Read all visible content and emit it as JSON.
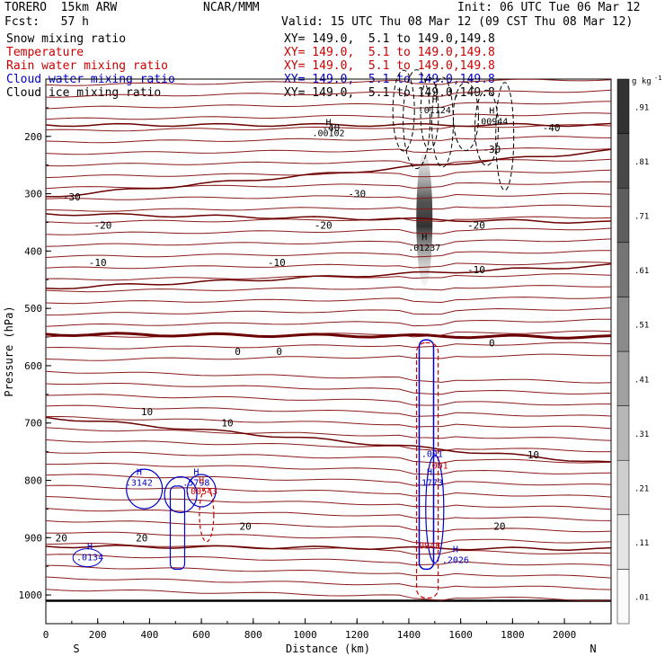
{
  "header": {
    "model": "TORERO  15km ARW",
    "center": "NCAR/MMM",
    "init": "Init: 06 UTC Tue 06 Mar 12",
    "fcst": "Fcst:   57 h",
    "valid": "Valid: 15 UTC Thu 08 Mar 12 (09 CST Thu 08 Mar 12)"
  },
  "fields": [
    {
      "name": "Snow mixing ratio",
      "xy": "XY= 149.0,  5.1 to 149.0,149.8",
      "color": "#000000"
    },
    {
      "name": "Temperature",
      "xy": "XY= 149.0,  5.1 to 149.0,149.8",
      "color": "#cc0000"
    },
    {
      "name": "Rain water mixing ratio",
      "xy": "XY= 149.0,  5.1 to 149.0,149.8",
      "color": "#cc0000"
    },
    {
      "name": "Cloud water mixing ratio",
      "xy": "XY= 149.0,  5.1 to 149.0,149.8",
      "color": "#0000cc"
    },
    {
      "name": "Cloud ice mixing ratio",
      "xy": "XY= 149.0,  5.1 to 149.0,149.8",
      "color": "#000000"
    }
  ],
  "chart_data": {
    "type": "cross-section",
    "xlabel": "Distance (km)",
    "ylabel": "Pressure (hPa)",
    "xlim": [
      0,
      2180
    ],
    "ylim": [
      100,
      1050
    ],
    "x_ticks": [
      0,
      200,
      400,
      600,
      800,
      1000,
      1200,
      1400,
      1600,
      1800,
      2000
    ],
    "y_ticks": [
      200,
      300,
      400,
      500,
      600,
      700,
      800,
      900,
      1000
    ],
    "x_end_labels": {
      "left": "S",
      "right": "N"
    },
    "colorbar": {
      "unit": "g kg",
      "unit_exp": "-1",
      "levels": [
        ".01",
        ".11",
        ".21",
        ".31",
        ".41",
        ".51",
        ".61",
        ".71",
        ".81",
        ".91"
      ]
    },
    "temperature_isotherms": [
      {
        "label": "-40",
        "p_left": 180,
        "p_right": 180,
        "labels_at": [
          [
            1100,
            185
          ],
          [
            1950,
            185
          ]
        ]
      },
      {
        "label": "-30",
        "p_left": 305,
        "p_right": 225,
        "labels_at": [
          [
            100,
            305
          ],
          [
            1200,
            300
          ],
          [
            1720,
            222
          ]
        ]
      },
      {
        "label": "-20",
        "p_left": 335,
        "p_right": 350,
        "labels_at": [
          [
            220,
            355
          ],
          [
            1070,
            355
          ],
          [
            1660,
            355
          ]
        ]
      },
      {
        "label": "-10",
        "p_left": 465,
        "p_right": 425,
        "labels_at": [
          [
            200,
            420
          ],
          [
            890,
            420
          ],
          [
            1660,
            432
          ]
        ]
      },
      {
        "label": "0",
        "p_left": 545,
        "p_right": 550,
        "labels_at": [
          [
            740,
            575
          ],
          [
            900,
            575
          ],
          [
            1720,
            560
          ]
        ]
      },
      {
        "label": "10",
        "p_left": 690,
        "p_right": 770,
        "labels_at": [
          [
            390,
            680
          ],
          [
            700,
            700
          ],
          [
            1880,
            755
          ]
        ]
      },
      {
        "label": "20",
        "p_left": 915,
        "p_right": 920,
        "labels_at": [
          [
            60,
            900
          ],
          [
            370,
            900
          ],
          [
            770,
            880
          ],
          [
            1750,
            880
          ]
        ]
      }
    ],
    "extrema_labels": [
      {
        "mark": "H",
        "value": ".01124",
        "x": 1500,
        "p": 150,
        "field": "Cloud ice mixing ratio"
      },
      {
        "mark": "H",
        "value": ".00944",
        "x": 1720,
        "p": 170,
        "field": "Cloud ice mixing ratio"
      },
      {
        "mark": "H",
        "value": ".00102",
        "x": 1090,
        "p": 190,
        "field": "Cloud ice mixing ratio"
      },
      {
        "mark": "H",
        "value": ".01237",
        "x": 1460,
        "p": 390,
        "field": "Snow mixing ratio"
      },
      {
        "mark": "H",
        "value": ".3142",
        "x": 360,
        "p": 800,
        "field": "Cloud water mixing ratio"
      },
      {
        "mark": "H",
        "value": ".5798",
        "x": 580,
        "p": 800,
        "field": "Cloud water mixing ratio"
      },
      {
        "mark": "H",
        "value": ".00543",
        "x": 600,
        "p": 815,
        "field": "Rain water mixing ratio"
      },
      {
        "mark": "H",
        "value": ".1773",
        "x": 1480,
        "p": 800,
        "field": "Cloud water mixing ratio"
      },
      {
        "mark": "H",
        "value": ".0134",
        "x": 170,
        "p": 930,
        "field": "Cloud water mixing ratio"
      },
      {
        "mark": "H",
        "value": ".2026",
        "x": 1580,
        "p": 935,
        "field": "Cloud water mixing ratio"
      },
      {
        "mark": "",
        "value": ".001",
        "x": 1490,
        "p": 750,
        "field": "Cloud water mixing ratio"
      },
      {
        "mark": "",
        "value": ".001",
        "x": 1510,
        "p": 770,
        "field": "Rain water mixing ratio"
      },
      {
        "mark": "",
        "value": ".0948",
        "x": 1470,
        "p": 910,
        "field": "Rain water mixing ratio"
      }
    ]
  }
}
